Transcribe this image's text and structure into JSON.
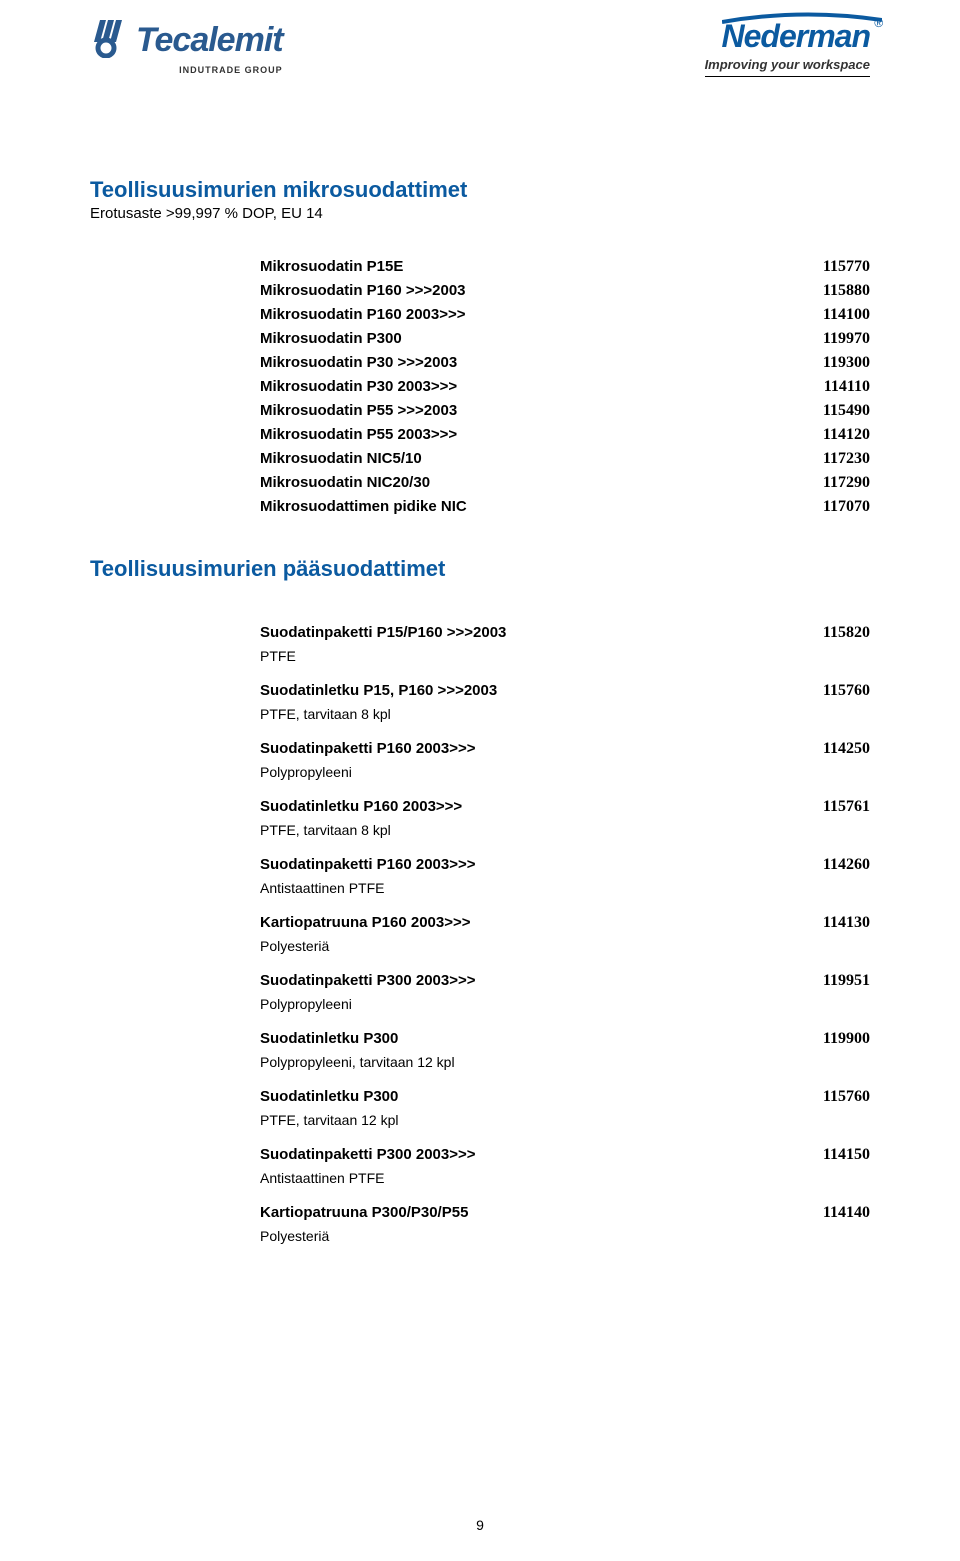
{
  "header": {
    "logo_left_text": "Tecalemit",
    "logo_left_sub": "INDUTRADE GROUP",
    "logo_right_text": "Nederman",
    "logo_right_r": "®",
    "logo_right_sub": "Improving your workspace"
  },
  "section1": {
    "title": "Teollisuusimurien mikrosuodattimet",
    "subtitle": "Erotusaste >99,997 % DOP, EU 14",
    "rows": [
      {
        "label": "Mikrosuodatin P15E",
        "code": "115770"
      },
      {
        "label": "Mikrosuodatin P160 >>>2003",
        "code": "115880"
      },
      {
        "label": "Mikrosuodatin P160 2003>>>",
        "code": "114100"
      },
      {
        "label": "Mikrosuodatin P300",
        "code": "119970"
      },
      {
        "label": "Mikrosuodatin P30 >>>2003",
        "code": "119300"
      },
      {
        "label": "Mikrosuodatin P30 2003>>>",
        "code": "114110"
      },
      {
        "label": "Mikrosuodatin P55 >>>2003",
        "code": "115490"
      },
      {
        "label": "Mikrosuodatin P55 2003>>>",
        "code": "114120"
      },
      {
        "label": "Mikrosuodatin NIC5/10",
        "code": "117230"
      },
      {
        "label": "Mikrosuodatin NIC20/30",
        "code": "117290"
      },
      {
        "label": "Mikrosuodattimen pidike NIC",
        "code": "117070"
      }
    ]
  },
  "section2": {
    "title": "Teollisuusimurien pääsuodattimet",
    "items": [
      {
        "label": "Suodatinpaketti P15/P160 >>>2003",
        "detail": "PTFE",
        "code": "115820"
      },
      {
        "label": "Suodatinletku P15, P160 >>>2003",
        "detail": "PTFE, tarvitaan 8 kpl",
        "code": "115760"
      },
      {
        "label": "Suodatinpaketti P160 2003>>>",
        "detail": "Polypropyleeni",
        "code": "114250"
      },
      {
        "label": "Suodatinletku P160 2003>>>",
        "detail": "PTFE, tarvitaan 8 kpl",
        "code": "115761"
      },
      {
        "label": "Suodatinpaketti P160 2003>>>",
        "detail": "Antistaattinen PTFE",
        "code": "114260"
      },
      {
        "label": "Kartiopatruuna P160 2003>>>",
        "detail": "Polyesteriä",
        "code": "114130"
      },
      {
        "label": "Suodatinpaketti P300 2003>>>",
        "detail": "Polypropyleeni",
        "code": "119951"
      },
      {
        "label": "Suodatinletku P300",
        "detail": "Polypropyleeni, tarvitaan 12 kpl",
        "code": "119900"
      },
      {
        "label": "Suodatinletku P300",
        "detail": "PTFE, tarvitaan 12 kpl",
        "code": "115760"
      },
      {
        "label": "Suodatinpaketti P300 2003>>>",
        "detail": "Antistaattinen PTFE",
        "code": "114150"
      },
      {
        "label": "Kartiopatruuna P300/P30/P55",
        "detail": "Polyesteriä",
        "code": "114140"
      }
    ]
  },
  "page_number": "9",
  "colors": {
    "brand_blue": "#0b5aa0",
    "tecalemit_blue": "#2a5a8f",
    "text": "#000000",
    "bg": "#ffffff"
  }
}
